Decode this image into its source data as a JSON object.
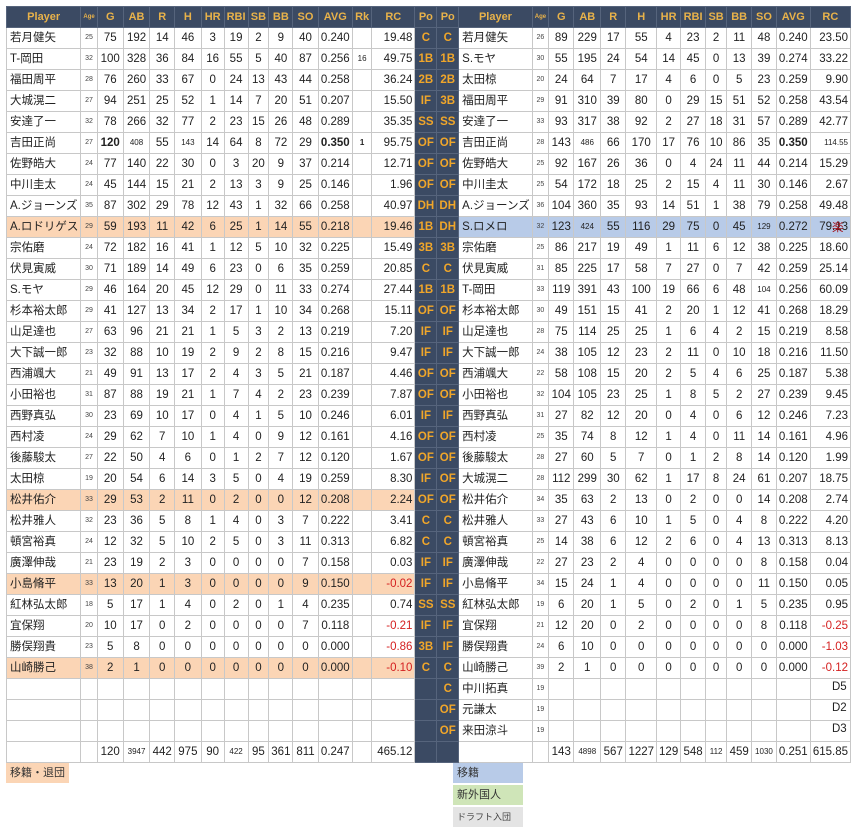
{
  "headers": [
    "Player",
    "Age",
    "G",
    "AB",
    "R",
    "H",
    "HR",
    "RBI",
    "SB",
    "BB",
    "SO",
    "AVG",
    "Rk",
    "RC",
    "Po",
    "Po",
    "Player",
    "Age",
    "G",
    "AB",
    "R",
    "H",
    "HR",
    "RBI",
    "SB",
    "BB",
    "SO",
    "AVG",
    "RC"
  ],
  "left_rows": [
    {
      "name": "若月健矢",
      "age": "25",
      "g": "75",
      "ab": "192",
      "r": "14",
      "h": "46",
      "hr": "3",
      "rbi": "19",
      "sb": "2",
      "bb": "9",
      "so": "40",
      "avg": "0.240",
      "rk": "",
      "rc": "19.48",
      "po": "C"
    },
    {
      "name": "T-岡田",
      "age": "32",
      "g": "100",
      "ab": "328",
      "r": "36",
      "h": "84",
      "hr": "16",
      "rbi": "55",
      "sb": "5",
      "bb": "40",
      "so": "87",
      "avg": "0.256",
      "rk": "16",
      "rc": "49.75",
      "po": "1B"
    },
    {
      "name": "福田周平",
      "age": "28",
      "g": "76",
      "ab": "260",
      "r": "33",
      "h": "67",
      "hr": "0",
      "rbi": "24",
      "sb": "13",
      "bb": "43",
      "so": "44",
      "avg": "0.258",
      "rk": "",
      "rc": "36.24",
      "po": "2B"
    },
    {
      "name": "大城滉二",
      "age": "27",
      "g": "94",
      "ab": "251",
      "r": "25",
      "h": "52",
      "hr": "1",
      "rbi": "14",
      "sb": "7",
      "bb": "20",
      "so": "51",
      "avg": "0.207",
      "rk": "",
      "rc": "15.50",
      "po": "IF"
    },
    {
      "name": "安達了一",
      "age": "32",
      "g": "78",
      "ab": "266",
      "r": "32",
      "h": "77",
      "hr": "2",
      "rbi": "23",
      "sb": "15",
      "bb": "26",
      "so": "48",
      "avg": "0.289",
      "rk": "",
      "rc": "35.35",
      "po": "SS"
    },
    {
      "name": "吉田正尚",
      "age": "27",
      "g": "120",
      "ab": "408",
      "r": "55",
      "h": "143",
      "hr": "14",
      "rbi": "64",
      "sb": "8",
      "bb": "72",
      "so": "29",
      "avg": "0.350",
      "rk": "1",
      "rc": "95.75",
      "po": "OF"
    },
    {
      "name": "佐野皓大",
      "age": "24",
      "g": "77",
      "ab": "140",
      "r": "22",
      "h": "30",
      "hr": "0",
      "rbi": "3",
      "sb": "20",
      "bb": "9",
      "so": "37",
      "avg": "0.214",
      "rk": "",
      "rc": "12.71",
      "po": "OF"
    },
    {
      "name": "中川圭太",
      "age": "24",
      "g": "45",
      "ab": "144",
      "r": "15",
      "h": "21",
      "hr": "2",
      "rbi": "13",
      "sb": "3",
      "bb": "9",
      "so": "25",
      "avg": "0.146",
      "rk": "",
      "rc": "1.96",
      "po": "OF"
    },
    {
      "name": "A.ジョーンズ",
      "age": "35",
      "g": "87",
      "ab": "302",
      "r": "29",
      "h": "78",
      "hr": "12",
      "rbi": "43",
      "sb": "1",
      "bb": "32",
      "so": "66",
      "avg": "0.258",
      "rk": "",
      "rc": "40.97",
      "po": "DH"
    },
    {
      "name": "A.ロドリゲス",
      "age": "29",
      "g": "59",
      "ab": "193",
      "r": "11",
      "h": "42",
      "hr": "6",
      "rbi": "25",
      "sb": "1",
      "bb": "14",
      "so": "55",
      "avg": "0.218",
      "rk": "",
      "rc": "19.46",
      "po": "1B",
      "hl": true
    },
    {
      "name": "宗佑磨",
      "age": "24",
      "g": "72",
      "ab": "182",
      "r": "16",
      "h": "41",
      "hr": "1",
      "rbi": "12",
      "sb": "5",
      "bb": "10",
      "so": "32",
      "avg": "0.225",
      "rk": "",
      "rc": "15.49",
      "po": "3B"
    },
    {
      "name": "伏見寅威",
      "age": "30",
      "g": "71",
      "ab": "189",
      "r": "14",
      "h": "49",
      "hr": "6",
      "rbi": "23",
      "sb": "0",
      "bb": "6",
      "so": "35",
      "avg": "0.259",
      "rk": "",
      "rc": "20.85",
      "po": "C"
    },
    {
      "name": "S.モヤ",
      "age": "29",
      "g": "46",
      "ab": "164",
      "r": "20",
      "h": "45",
      "hr": "12",
      "rbi": "29",
      "sb": "0",
      "bb": "11",
      "so": "33",
      "avg": "0.274",
      "rk": "",
      "rc": "27.44",
      "po": "1B"
    },
    {
      "name": "杉本裕太郎",
      "age": "29",
      "g": "41",
      "ab": "127",
      "r": "13",
      "h": "34",
      "hr": "2",
      "rbi": "17",
      "sb": "1",
      "bb": "10",
      "so": "34",
      "avg": "0.268",
      "rk": "",
      "rc": "15.11",
      "po": "OF"
    },
    {
      "name": "山足達也",
      "age": "27",
      "g": "63",
      "ab": "96",
      "r": "21",
      "h": "21",
      "hr": "1",
      "rbi": "5",
      "sb": "3",
      "bb": "2",
      "so": "13",
      "avg": "0.219",
      "rk": "",
      "rc": "7.20",
      "po": "IF"
    },
    {
      "name": "大下誠一郎",
      "age": "23",
      "g": "32",
      "ab": "88",
      "r": "10",
      "h": "19",
      "hr": "2",
      "rbi": "9",
      "sb": "2",
      "bb": "8",
      "so": "15",
      "avg": "0.216",
      "rk": "",
      "rc": "9.47",
      "po": "IF"
    },
    {
      "name": "西浦颯大",
      "age": "21",
      "g": "49",
      "ab": "91",
      "r": "13",
      "h": "17",
      "hr": "2",
      "rbi": "4",
      "sb": "3",
      "bb": "5",
      "so": "21",
      "avg": "0.187",
      "rk": "",
      "rc": "4.46",
      "po": "OF"
    },
    {
      "name": "小田裕也",
      "age": "31",
      "g": "87",
      "ab": "88",
      "r": "19",
      "h": "21",
      "hr": "1",
      "rbi": "7",
      "sb": "4",
      "bb": "2",
      "so": "23",
      "avg": "0.239",
      "rk": "",
      "rc": "7.87",
      "po": "OF"
    },
    {
      "name": "西野真弘",
      "age": "30",
      "g": "23",
      "ab": "69",
      "r": "10",
      "h": "17",
      "hr": "0",
      "rbi": "4",
      "sb": "1",
      "bb": "5",
      "so": "10",
      "avg": "0.246",
      "rk": "",
      "rc": "6.01",
      "po": "IF"
    },
    {
      "name": "西村凌",
      "age": "24",
      "g": "29",
      "ab": "62",
      "r": "7",
      "h": "10",
      "hr": "1",
      "rbi": "4",
      "sb": "0",
      "bb": "9",
      "so": "12",
      "avg": "0.161",
      "rk": "",
      "rc": "4.16",
      "po": "OF"
    },
    {
      "name": "後藤駿太",
      "age": "27",
      "g": "22",
      "ab": "50",
      "r": "4",
      "h": "6",
      "hr": "0",
      "rbi": "1",
      "sb": "2",
      "bb": "7",
      "so": "12",
      "avg": "0.120",
      "rk": "",
      "rc": "1.67",
      "po": "OF"
    },
    {
      "name": "太田椋",
      "age": "19",
      "g": "20",
      "ab": "54",
      "r": "6",
      "h": "14",
      "hr": "3",
      "rbi": "5",
      "sb": "0",
      "bb": "4",
      "so": "19",
      "avg": "0.259",
      "rk": "",
      "rc": "8.30",
      "po": "IF"
    },
    {
      "name": "松井佑介",
      "age": "33",
      "g": "29",
      "ab": "53",
      "r": "2",
      "h": "11",
      "hr": "0",
      "rbi": "2",
      "sb": "0",
      "bb": "0",
      "so": "12",
      "avg": "0.208",
      "rk": "",
      "rc": "2.24",
      "po": "OF",
      "hl": true
    },
    {
      "name": "松井雅人",
      "age": "32",
      "g": "23",
      "ab": "36",
      "r": "5",
      "h": "8",
      "hr": "1",
      "rbi": "4",
      "sb": "0",
      "bb": "3",
      "so": "7",
      "avg": "0.222",
      "rk": "",
      "rc": "3.41",
      "po": "C"
    },
    {
      "name": "頓宮裕真",
      "age": "24",
      "g": "12",
      "ab": "32",
      "r": "5",
      "h": "10",
      "hr": "2",
      "rbi": "5",
      "sb": "0",
      "bb": "3",
      "so": "11",
      "avg": "0.313",
      "rk": "",
      "rc": "6.82",
      "po": "C"
    },
    {
      "name": "廣澤伸哉",
      "age": "21",
      "g": "23",
      "ab": "19",
      "r": "2",
      "h": "3",
      "hr": "0",
      "rbi": "0",
      "sb": "0",
      "bb": "0",
      "so": "7",
      "avg": "0.158",
      "rk": "",
      "rc": "0.03",
      "po": "IF"
    },
    {
      "name": "小島脩平",
      "age": "33",
      "g": "13",
      "ab": "20",
      "r": "1",
      "h": "3",
      "hr": "0",
      "rbi": "0",
      "sb": "0",
      "bb": "0",
      "so": "9",
      "avg": "0.150",
      "rk": "",
      "rc": "-0.02",
      "po": "IF",
      "hl": true
    },
    {
      "name": "紅林弘太郎",
      "age": "18",
      "g": "5",
      "ab": "17",
      "r": "1",
      "h": "4",
      "hr": "0",
      "rbi": "2",
      "sb": "0",
      "bb": "1",
      "so": "4",
      "avg": "0.235",
      "rk": "",
      "rc": "0.74",
      "po": "SS"
    },
    {
      "name": "宜保翔",
      "age": "20",
      "g": "10",
      "ab": "17",
      "r": "0",
      "h": "2",
      "hr": "0",
      "rbi": "0",
      "sb": "0",
      "bb": "0",
      "so": "7",
      "avg": "0.118",
      "rk": "",
      "rc": "-0.21",
      "po": "IF"
    },
    {
      "name": "勝俣翔貴",
      "age": "23",
      "g": "5",
      "ab": "8",
      "r": "0",
      "h": "0",
      "hr": "0",
      "rbi": "0",
      "sb": "0",
      "bb": "0",
      "so": "0",
      "avg": "0.000",
      "rk": "",
      "rc": "-0.86",
      "po": "3B"
    },
    {
      "name": "山崎勝己",
      "age": "38",
      "g": "2",
      "ab": "1",
      "r": "0",
      "h": "0",
      "hr": "0",
      "rbi": "0",
      "sb": "0",
      "bb": "0",
      "so": "0",
      "avg": "0.000",
      "rk": "",
      "rc": "-0.10",
      "po": "C",
      "hl": true
    },
    {
      "name": "",
      "age": "",
      "g": "",
      "ab": "",
      "r": "",
      "h": "",
      "hr": "",
      "rbi": "",
      "sb": "",
      "bb": "",
      "so": "",
      "avg": "",
      "rk": "",
      "rc": "",
      "po": ""
    },
    {
      "name": "",
      "age": "",
      "g": "",
      "ab": "",
      "r": "",
      "h": "",
      "hr": "",
      "rbi": "",
      "sb": "",
      "bb": "",
      "so": "",
      "avg": "",
      "rk": "",
      "rc": "",
      "po": ""
    },
    {
      "name": "",
      "age": "",
      "g": "",
      "ab": "",
      "r": "",
      "h": "",
      "hr": "",
      "rbi": "",
      "sb": "",
      "bb": "",
      "so": "",
      "avg": "",
      "rk": "",
      "rc": "",
      "po": ""
    }
  ],
  "right_rows": [
    {
      "po": "C",
      "name": "若月健矢",
      "age": "26",
      "g": "89",
      "ab": "229",
      "r": "17",
      "h": "55",
      "hr": "4",
      "rbi": "23",
      "sb": "2",
      "bb": "11",
      "so": "48",
      "avg": "0.240",
      "rc": "23.50"
    },
    {
      "po": "1B",
      "name": "S.モヤ",
      "age": "30",
      "g": "55",
      "ab": "195",
      "r": "24",
      "h": "54",
      "hr": "14",
      "rbi": "45",
      "sb": "0",
      "bb": "13",
      "so": "39",
      "avg": "0.274",
      "rc": "33.22"
    },
    {
      "po": "2B",
      "name": "太田椋",
      "age": "20",
      "g": "24",
      "ab": "64",
      "r": "7",
      "h": "17",
      "hr": "4",
      "rbi": "6",
      "sb": "0",
      "bb": "5",
      "so": "23",
      "avg": "0.259",
      "rc": "9.90"
    },
    {
      "po": "3B",
      "name": "福田周平",
      "age": "29",
      "g": "91",
      "ab": "310",
      "r": "39",
      "h": "80",
      "hr": "0",
      "rbi": "29",
      "sb": "15",
      "bb": "51",
      "so": "52",
      "avg": "0.258",
      "rc": "43.54"
    },
    {
      "po": "SS",
      "name": "安達了一",
      "age": "33",
      "g": "93",
      "ab": "317",
      "r": "38",
      "h": "92",
      "hr": "2",
      "rbi": "27",
      "sb": "18",
      "bb": "31",
      "so": "57",
      "avg": "0.289",
      "rc": "42.77"
    },
    {
      "po": "OF",
      "name": "吉田正尚",
      "age": "28",
      "g": "143",
      "ab": "486",
      "r": "66",
      "h": "170",
      "hr": "17",
      "rbi": "76",
      "sb": "10",
      "bb": "86",
      "so": "35",
      "avg": "0.350",
      "rc": "114.55"
    },
    {
      "po": "OF",
      "name": "佐野皓大",
      "age": "25",
      "g": "92",
      "ab": "167",
      "r": "26",
      "h": "36",
      "hr": "0",
      "rbi": "4",
      "sb": "24",
      "bb": "11",
      "so": "44",
      "avg": "0.214",
      "rc": "15.29"
    },
    {
      "po": "OF",
      "name": "中川圭太",
      "age": "25",
      "g": "54",
      "ab": "172",
      "r": "18",
      "h": "25",
      "hr": "2",
      "rbi": "15",
      "sb": "4",
      "bb": "11",
      "so": "30",
      "avg": "0.146",
      "rc": "2.67"
    },
    {
      "po": "DH",
      "name": "A.ジョーンズ",
      "age": "36",
      "g": "104",
      "ab": "360",
      "r": "35",
      "h": "93",
      "hr": "14",
      "rbi": "51",
      "sb": "1",
      "bb": "38",
      "so": "79",
      "avg": "0.258",
      "rc": "49.48"
    },
    {
      "po": "DH",
      "name": "S.ロメロ",
      "age": "32",
      "g": "123",
      "ab": "424",
      "r": "55",
      "h": "116",
      "hr": "29",
      "rbi": "75",
      "sb": "0",
      "bb": "45",
      "so": "129",
      "avg": "0.272",
      "rc": "79.13",
      "hl": true,
      "mark": "楽"
    },
    {
      "po": "3B",
      "name": "宗佑磨",
      "age": "25",
      "g": "86",
      "ab": "217",
      "r": "19",
      "h": "49",
      "hr": "1",
      "rbi": "11",
      "sb": "6",
      "bb": "12",
      "so": "38",
      "avg": "0.225",
      "rc": "18.60"
    },
    {
      "po": "C",
      "name": "伏見寅威",
      "age": "31",
      "g": "85",
      "ab": "225",
      "r": "17",
      "h": "58",
      "hr": "7",
      "rbi": "27",
      "sb": "0",
      "bb": "7",
      "so": "42",
      "avg": "0.259",
      "rc": "25.14"
    },
    {
      "po": "1B",
      "name": "T-岡田",
      "age": "33",
      "g": "119",
      "ab": "391",
      "r": "43",
      "h": "100",
      "hr": "19",
      "rbi": "66",
      "sb": "6",
      "bb": "48",
      "so": "104",
      "avg": "0.256",
      "rc": "60.09"
    },
    {
      "po": "OF",
      "name": "杉本裕太郎",
      "age": "30",
      "g": "49",
      "ab": "151",
      "r": "15",
      "h": "41",
      "hr": "2",
      "rbi": "20",
      "sb": "1",
      "bb": "12",
      "so": "41",
      "avg": "0.268",
      "rc": "18.29"
    },
    {
      "po": "IF",
      "name": "山足達也",
      "age": "28",
      "g": "75",
      "ab": "114",
      "r": "25",
      "h": "25",
      "hr": "1",
      "rbi": "6",
      "sb": "4",
      "bb": "2",
      "so": "15",
      "avg": "0.219",
      "rc": "8.58"
    },
    {
      "po": "IF",
      "name": "大下誠一郎",
      "age": "24",
      "g": "38",
      "ab": "105",
      "r": "12",
      "h": "23",
      "hr": "2",
      "rbi": "11",
      "sb": "0",
      "bb": "10",
      "so": "18",
      "avg": "0.216",
      "rc": "11.50"
    },
    {
      "po": "OF",
      "name": "西浦颯大",
      "age": "22",
      "g": "58",
      "ab": "108",
      "r": "15",
      "h": "20",
      "hr": "2",
      "rbi": "5",
      "sb": "4",
      "bb": "6",
      "so": "25",
      "avg": "0.187",
      "rc": "5.38"
    },
    {
      "po": "OF",
      "name": "小田裕也",
      "age": "32",
      "g": "104",
      "ab": "105",
      "r": "23",
      "h": "25",
      "hr": "1",
      "rbi": "8",
      "sb": "5",
      "bb": "2",
      "so": "27",
      "avg": "0.239",
      "rc": "9.45"
    },
    {
      "po": "IF",
      "name": "西野真弘",
      "age": "31",
      "g": "27",
      "ab": "82",
      "r": "12",
      "h": "20",
      "hr": "0",
      "rbi": "4",
      "sb": "0",
      "bb": "6",
      "so": "12",
      "avg": "0.246",
      "rc": "7.23"
    },
    {
      "po": "OF",
      "name": "西村凌",
      "age": "25",
      "g": "35",
      "ab": "74",
      "r": "8",
      "h": "12",
      "hr": "1",
      "rbi": "4",
      "sb": "0",
      "bb": "11",
      "so": "14",
      "avg": "0.161",
      "rc": "4.96"
    },
    {
      "po": "OF",
      "name": "後藤駿太",
      "age": "28",
      "g": "27",
      "ab": "60",
      "r": "5",
      "h": "7",
      "hr": "0",
      "rbi": "1",
      "sb": "2",
      "bb": "8",
      "so": "14",
      "avg": "0.120",
      "rc": "1.99"
    },
    {
      "po": "OF",
      "name": "大城滉二",
      "age": "28",
      "g": "112",
      "ab": "299",
      "r": "30",
      "h": "62",
      "hr": "1",
      "rbi": "17",
      "sb": "8",
      "bb": "24",
      "so": "61",
      "avg": "0.207",
      "rc": "18.75"
    },
    {
      "po": "OF",
      "name": "松井佑介",
      "age": "34",
      "g": "35",
      "ab": "63",
      "r": "2",
      "h": "13",
      "hr": "0",
      "rbi": "2",
      "sb": "0",
      "bb": "0",
      "so": "14",
      "avg": "0.208",
      "rc": "2.74"
    },
    {
      "po": "C",
      "name": "松井雅人",
      "age": "33",
      "g": "27",
      "ab": "43",
      "r": "6",
      "h": "10",
      "hr": "1",
      "rbi": "5",
      "sb": "0",
      "bb": "4",
      "so": "8",
      "avg": "0.222",
      "rc": "4.20"
    },
    {
      "po": "C",
      "name": "頓宮裕真",
      "age": "25",
      "g": "14",
      "ab": "38",
      "r": "6",
      "h": "12",
      "hr": "2",
      "rbi": "6",
      "sb": "0",
      "bb": "4",
      "so": "13",
      "avg": "0.313",
      "rc": "8.13"
    },
    {
      "po": "IF",
      "name": "廣澤伸哉",
      "age": "22",
      "g": "27",
      "ab": "23",
      "r": "2",
      "h": "4",
      "hr": "0",
      "rbi": "0",
      "sb": "0",
      "bb": "0",
      "so": "8",
      "avg": "0.158",
      "rc": "0.04"
    },
    {
      "po": "IF",
      "name": "小島脩平",
      "age": "34",
      "g": "15",
      "ab": "24",
      "r": "1",
      "h": "4",
      "hr": "0",
      "rbi": "0",
      "sb": "0",
      "bb": "0",
      "so": "11",
      "avg": "0.150",
      "rc": "0.05"
    },
    {
      "po": "SS",
      "name": "紅林弘太郎",
      "age": "19",
      "g": "6",
      "ab": "20",
      "r": "1",
      "h": "5",
      "hr": "0",
      "rbi": "2",
      "sb": "0",
      "bb": "1",
      "so": "5",
      "avg": "0.235",
      "rc": "0.95"
    },
    {
      "po": "IF",
      "name": "宜保翔",
      "age": "21",
      "g": "12",
      "ab": "20",
      "r": "0",
      "h": "2",
      "hr": "0",
      "rbi": "0",
      "sb": "0",
      "bb": "0",
      "so": "8",
      "avg": "0.118",
      "rc": "-0.25"
    },
    {
      "po": "IF",
      "name": "勝俣翔貴",
      "age": "24",
      "g": "6",
      "ab": "10",
      "r": "0",
      "h": "0",
      "hr": "0",
      "rbi": "0",
      "sb": "0",
      "bb": "0",
      "so": "0",
      "avg": "0.000",
      "rc": "-1.03"
    },
    {
      "po": "C",
      "name": "山崎勝己",
      "age": "39",
      "g": "2",
      "ab": "1",
      "r": "0",
      "h": "0",
      "hr": "0",
      "rbi": "0",
      "sb": "0",
      "bb": "0",
      "so": "0",
      "avg": "0.000",
      "rc": "-0.12"
    },
    {
      "po": "C",
      "name": "中川拓真",
      "age": "19",
      "g": "",
      "ab": "",
      "r": "",
      "h": "",
      "hr": "",
      "rbi": "",
      "sb": "",
      "bb": "",
      "so": "",
      "avg": "",
      "rc": "",
      "mark": "D5"
    },
    {
      "po": "OF",
      "name": "元謙太",
      "age": "19",
      "g": "",
      "ab": "",
      "r": "",
      "h": "",
      "hr": "",
      "rbi": "",
      "sb": "",
      "bb": "",
      "so": "",
      "avg": "",
      "rc": "",
      "mark": "D2"
    },
    {
      "po": "OF",
      "name": "来田涼斗",
      "age": "19",
      "g": "",
      "ab": "",
      "r": "",
      "h": "",
      "hr": "",
      "rbi": "",
      "sb": "",
      "bb": "",
      "so": "",
      "avg": "",
      "rc": "",
      "mark": "D3"
    }
  ],
  "totals_left": {
    "g": "120",
    "ab": "3947",
    "r": "442",
    "h": "975",
    "hr": "90",
    "rbi": "422",
    "sb": "95",
    "bb": "361",
    "so": "811",
    "avg": "0.247",
    "rc": "465.12"
  },
  "totals_right": {
    "g": "143",
    "ab": "4898",
    "r": "567",
    "h": "1227",
    "hr": "129",
    "rbi": "548",
    "sb": "112",
    "bb": "459",
    "so": "1030",
    "avg": "0.251",
    "rc": "615.85"
  },
  "legend": {
    "left": "移籍・退団",
    "right": [
      "移籍",
      "新外国人",
      "ドラフト入団"
    ],
    "colors": {
      "leave": "#fbd5b5",
      "transfer": "#b8cbe8",
      "foreign": "#cfe5b8",
      "draft": "#e4e4e4"
    }
  }
}
